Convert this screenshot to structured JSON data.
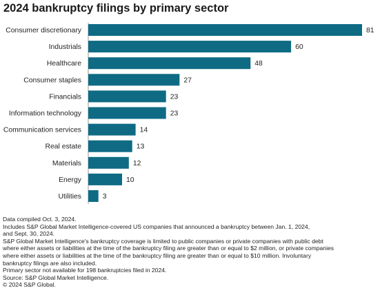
{
  "chart_data": {
    "type": "bar",
    "orientation": "horizontal",
    "title": "2024 bankruptcy filings by primary sector",
    "categories": [
      "Consumer discretionary",
      "Industrials",
      "Healthcare",
      "Consumer staples",
      "Financials",
      "Information technology",
      "Communication services",
      "Real estate",
      "Materials",
      "Energy",
      "Utilities"
    ],
    "values": [
      81,
      60,
      48,
      27,
      23,
      23,
      14,
      13,
      12,
      10,
      3
    ],
    "xlim": [
      0,
      81
    ],
    "grid": false,
    "legend": "none",
    "bar_color": "#0f6b84"
  },
  "notes": [
    "Data compiled Oct. 3, 2024.",
    "Includes S&P Global Market Intelligence-covered US companies that announced a bankruptcy between Jan. 1, 2024,",
    "and Sept. 30, 2024.",
    "S&P Global Market Intelligence's bankruptcy coverage is limited to public companies or private companies with public debt",
    "where either assets or liabilities at the time of the bankruptcy filing are greater than or equal to $2 million, or private companies",
    "where either assets or liabilities at the time of the bankruptcy filing are greater than or equal to $10 million. Involuntary",
    "bankruptcy filings are also included.",
    "Primary sector not available for 198 bankruptcies filed in 2024.",
    "Source: S&P Global Market Intelligence.",
    "© 2024 S&P Global."
  ]
}
